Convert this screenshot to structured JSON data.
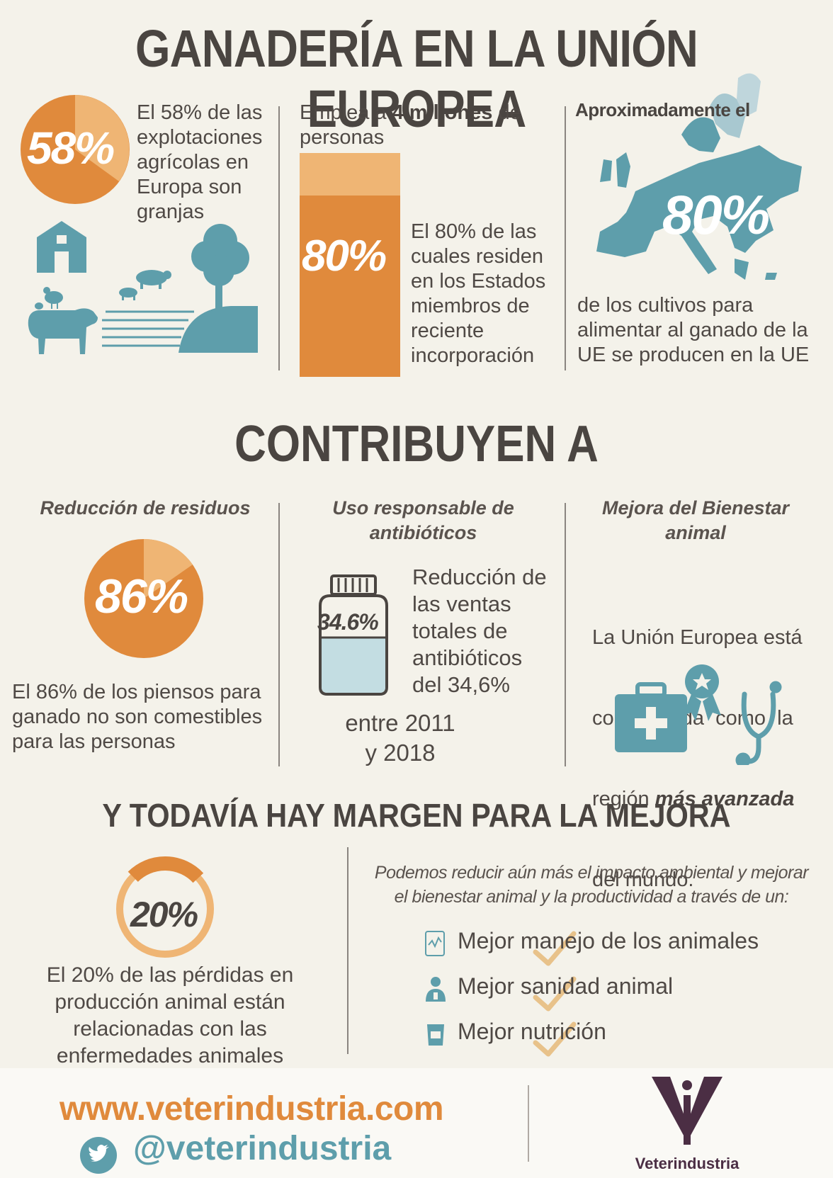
{
  "title": "GANADERÍA EN LA UNIÓN EUROPEA",
  "col1": {
    "percent": "58%",
    "text": [
      "El 58% de las",
      "explotaciones",
      "agrícolas en",
      "Europa son",
      "granjas"
    ]
  },
  "col2": {
    "intro_prefix": "Emplea a ",
    "intro_bold": "4 millones",
    "intro_suffix": " de",
    "intro_line2": "personas",
    "percent": "80%",
    "text": [
      "El 80% de las",
      "cuales residen",
      "en los Estados",
      "miembros de",
      "reciente",
      "incorporación"
    ]
  },
  "col3": {
    "heading": "Aproximadamente el",
    "percent": "80%",
    "text": [
      "de los cultivos para",
      "alimentar al ganado de la",
      "UE se producen en la UE"
    ]
  },
  "section2": {
    "title": "CONTRIBUYEN A",
    "col1": {
      "heading": "Reducción de residuos",
      "percent": "86%",
      "text": [
        "El 86% de los piensos para",
        "ganado no son comestibles",
        "para las personas"
      ]
    },
    "col2": {
      "heading_line1": "Uso responsable de",
      "heading_line2": "antibióticos",
      "bottle_label": "34.6%",
      "text": [
        "Reducción de",
        "las ventas",
        "totales de",
        "antibióticos",
        "del 34,6%"
      ],
      "period_line1": "entre 2011",
      "period_line2": "y 2018"
    },
    "col3": {
      "heading_line1": "Mejora del Bienestar",
      "heading_line2": "animal",
      "text_line1": "La Unión Europea está",
      "text_line2": "considerada  como  la",
      "text_line3_prefix": "región ",
      "text_line3_emph": "más avanzada",
      "text_line4": "del mundo."
    }
  },
  "section3": {
    "title": "Y TODAVÍA HAY MARGEN PARA LA MEJORA",
    "percent": "20%",
    "percent_value": 20,
    "text": [
      "El 20% de las pérdidas en",
      "producción animal están",
      "relacionadas con las",
      "enfermedades animales"
    ],
    "intro": [
      "Podemos reducir aún más el impacto ambiental y mejorar",
      "el bienestar animal y la productividad a través de un:"
    ],
    "items": [
      {
        "label": "Mejor manejo de los animales",
        "icon": "tablet-chart-icon"
      },
      {
        "label": "Mejor sanidad animal",
        "icon": "veterinarian-icon"
      },
      {
        "label": "Mejor nutrición",
        "icon": "feed-bag-icon"
      }
    ]
  },
  "footer": {
    "url": "www.veterindustria.com",
    "twitter": "@veterindustria",
    "brand": "Veterindustria"
  },
  "colors": {
    "orange": "#e08a3c",
    "light_orange": "#efb574",
    "teal": "#5e9eab",
    "text": "#4a4440"
  }
}
